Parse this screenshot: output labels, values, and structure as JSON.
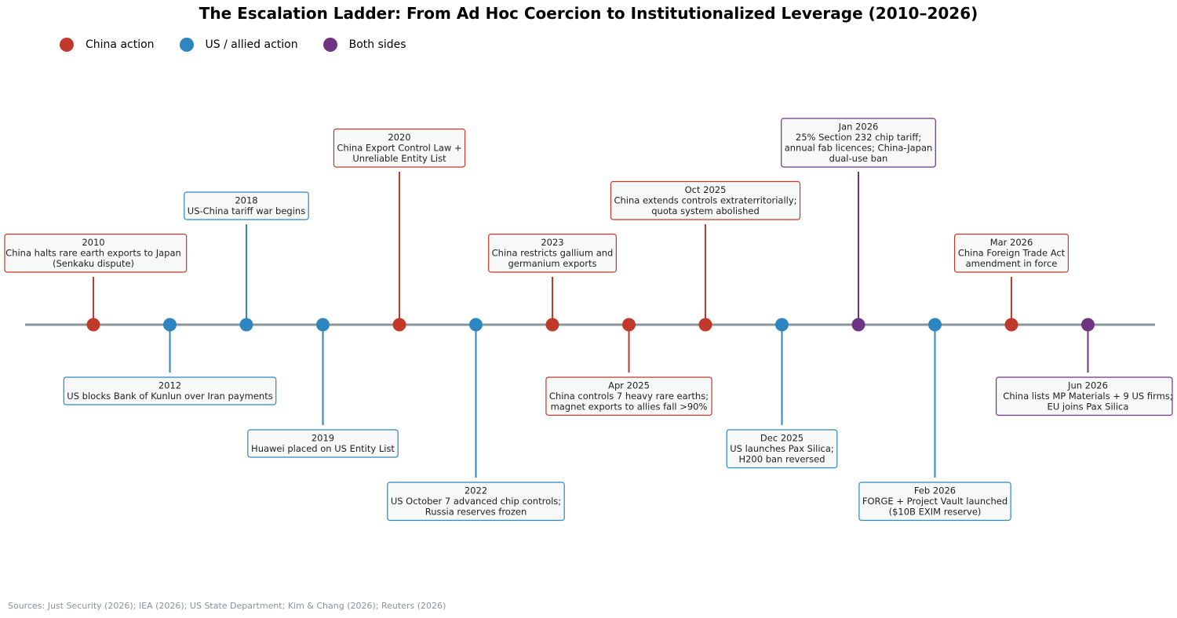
{
  "title": "The Escalation Ladder: From Ad Hoc Coercion to Institutionalized Leverage (2010–2026)",
  "legend": [
    {
      "key": "china",
      "label": "China action",
      "color": "#c0392b"
    },
    {
      "key": "us",
      "label": "US / allied action",
      "color": "#2e86c1"
    },
    {
      "key": "both",
      "label": "Both sides",
      "color": "#6c3483"
    }
  ],
  "source": "Sources: Just Security (2026); IEA (2026); US State Department; Kim & Chang (2026); Reuters (2026)",
  "timeline": {
    "axis_color": "#8a9499",
    "box_fill": "#f7f8f8",
    "events": [
      {
        "date": "2010",
        "lines": [
          "China halts rare earth exports to Japan",
          "(Senkaku dispute)"
        ],
        "actor": "china",
        "side": "above",
        "tier": 1
      },
      {
        "date": "2012",
        "lines": [
          "US blocks Bank of Kunlun over Iran payments"
        ],
        "actor": "us",
        "side": "below",
        "tier": 1
      },
      {
        "date": "2018",
        "lines": [
          "US-China tariff war begins"
        ],
        "actor": "us",
        "side": "above",
        "tier": 2
      },
      {
        "date": "2019",
        "lines": [
          "Huawei placed on US Entity List"
        ],
        "actor": "us",
        "side": "below",
        "tier": 2
      },
      {
        "date": "2020",
        "lines": [
          "China Export Control Law +",
          "Unreliable Entity List"
        ],
        "actor": "china",
        "side": "above",
        "tier": 3
      },
      {
        "date": "2022",
        "lines": [
          "US October 7 advanced chip controls;",
          "Russia reserves frozen"
        ],
        "actor": "us",
        "side": "below",
        "tier": 3
      },
      {
        "date": "2023",
        "lines": [
          "China restricts gallium and",
          "germanium exports"
        ],
        "actor": "china",
        "side": "above",
        "tier": 1
      },
      {
        "date": "Apr 2025",
        "lines": [
          "China controls 7 heavy rare earths;",
          "magnet exports to allies fall >90%"
        ],
        "actor": "china",
        "side": "below",
        "tier": 1
      },
      {
        "date": "Oct 2025",
        "lines": [
          "China extends controls extraterritorially;",
          "quota system abolished"
        ],
        "actor": "china",
        "side": "above",
        "tier": 2
      },
      {
        "date": "Dec 2025",
        "lines": [
          "US launches Pax Silica;",
          "H200 ban reversed"
        ],
        "actor": "us",
        "side": "below",
        "tier": 2
      },
      {
        "date": "Jan 2026",
        "lines": [
          "25% Section 232 chip tariff;",
          "annual fab licences; China-Japan",
          "dual-use ban"
        ],
        "actor": "both",
        "side": "above",
        "tier": 3
      },
      {
        "date": "Feb 2026",
        "lines": [
          "FORGE + Project Vault launched",
          "($10B EXIM reserve)"
        ],
        "actor": "us",
        "side": "below",
        "tier": 3
      },
      {
        "date": "Mar 2026",
        "lines": [
          "China Foreign Trade Act",
          "amendment in force"
        ],
        "actor": "china",
        "side": "above",
        "tier": 1
      },
      {
        "date": "Jun 2026",
        "lines": [
          "China lists MP Materials + 9 US firms;",
          "EU joins Pax Silica"
        ],
        "actor": "both",
        "side": "below",
        "tier": 1
      }
    ]
  }
}
